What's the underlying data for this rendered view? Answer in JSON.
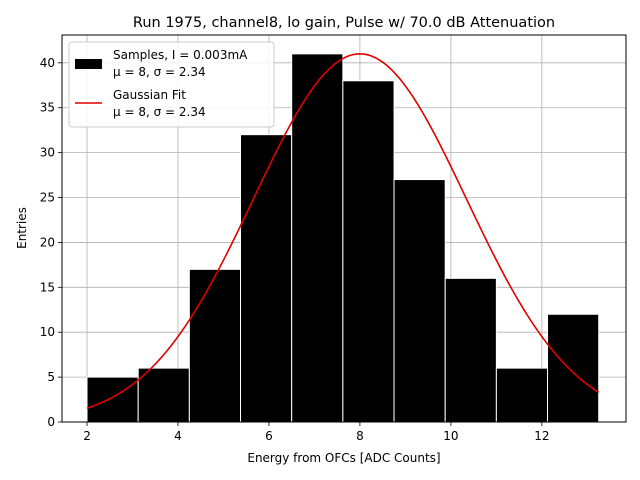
{
  "chart_data": {
    "type": "bar",
    "title": "Run 1975, channel8, lo gain, Pulse w/ 70.0 dB Attenuation",
    "xlabel": "Energy from OFCs [ADC Counts]",
    "ylabel": "Entries",
    "xlim": [
      1.45,
      13.85
    ],
    "ylim": [
      0,
      43.1
    ],
    "xticks": [
      "2",
      "4",
      "6",
      "8",
      "10",
      "12"
    ],
    "yticks": [
      "0",
      "5",
      "10",
      "15",
      "20",
      "25",
      "30",
      "35",
      "40"
    ],
    "grid": true,
    "legend_position": "top-left",
    "histogram": {
      "bin_edges": [
        2.0,
        3.125,
        4.25,
        5.375,
        6.5,
        7.625,
        8.75,
        9.875,
        11.0,
        12.125,
        13.25
      ],
      "counts": [
        5,
        6,
        17,
        32,
        41,
        38,
        27,
        16,
        6,
        12
      ],
      "color": "#000000",
      "edge_color": "#ffffff"
    },
    "fit": {
      "type": "gaussian",
      "mu": 8,
      "sigma": 2.34,
      "amplitude": 41,
      "x_range": [
        2.0,
        13.25
      ],
      "color": "#e00000"
    },
    "legend": [
      {
        "key": "samples",
        "line1": "Samples, I = 0.003mA",
        "line2": "μ = 8, σ = 2.34"
      },
      {
        "key": "fit",
        "line1": "Gaussian Fit",
        "line2": "μ = 8, σ = 2.34"
      }
    ]
  }
}
